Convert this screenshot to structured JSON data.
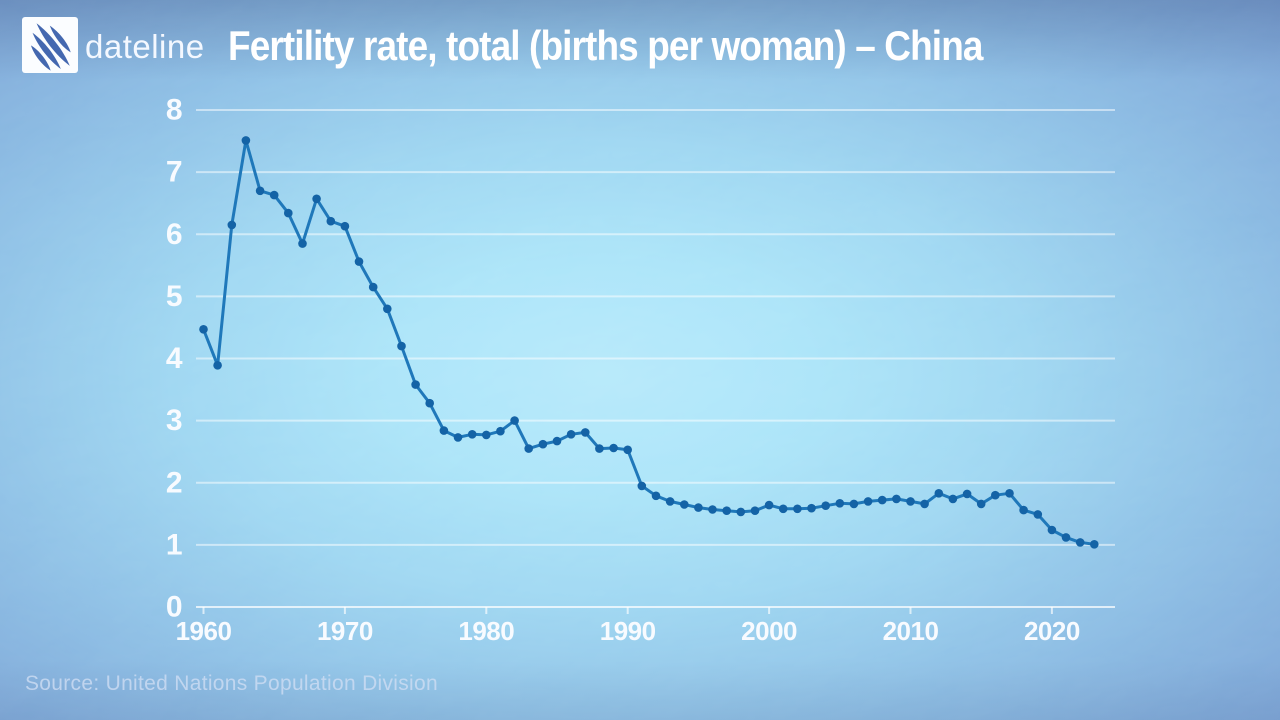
{
  "header": {
    "brand": "dateline"
  },
  "chart_data": {
    "type": "line",
    "title": "Fertility rate, total (births per woman) – China",
    "series_name": "China",
    "xlabel": "",
    "ylabel": "",
    "ylim": [
      0,
      8
    ],
    "yticks": [
      0,
      1,
      2,
      3,
      4,
      5,
      6,
      7,
      8
    ],
    "xticks": [
      1960,
      1970,
      1980,
      1990,
      2000,
      2010,
      2020
    ],
    "grid": true,
    "legend": "none",
    "markers": true,
    "x": [
      1960,
      1961,
      1962,
      1963,
      1964,
      1965,
      1966,
      1967,
      1968,
      1969,
      1970,
      1971,
      1972,
      1973,
      1974,
      1975,
      1976,
      1977,
      1978,
      1979,
      1980,
      1981,
      1982,
      1983,
      1984,
      1985,
      1986,
      1987,
      1988,
      1989,
      1990,
      1991,
      1992,
      1993,
      1994,
      1995,
      1996,
      1997,
      1998,
      1999,
      2000,
      2001,
      2002,
      2003,
      2004,
      2005,
      2006,
      2007,
      2008,
      2009,
      2010,
      2011,
      2012,
      2013,
      2014,
      2015,
      2016,
      2017,
      2018,
      2019,
      2020,
      2021,
      2022,
      2023
    ],
    "values": [
      4.47,
      3.89,
      6.15,
      7.51,
      6.7,
      6.63,
      6.34,
      5.85,
      6.57,
      6.21,
      6.13,
      5.56,
      5.15,
      4.8,
      4.2,
      3.58,
      3.28,
      2.84,
      2.73,
      2.78,
      2.77,
      2.83,
      3.0,
      2.55,
      2.62,
      2.67,
      2.78,
      2.81,
      2.55,
      2.56,
      2.53,
      1.95,
      1.79,
      1.7,
      1.65,
      1.6,
      1.57,
      1.55,
      1.53,
      1.55,
      1.64,
      1.58,
      1.58,
      1.59,
      1.63,
      1.67,
      1.66,
      1.7,
      1.72,
      1.74,
      1.7,
      1.66,
      1.83,
      1.74,
      1.82,
      1.66,
      1.8,
      1.83,
      1.56,
      1.49,
      1.24,
      1.12,
      1.04,
      1.01
    ]
  },
  "footer": {
    "source": "Source: United Nations Population Division"
  },
  "colors": {
    "line": "#1f78ba",
    "marker": "#1463a6",
    "grid": "rgba(255,255,255,0.50)",
    "baseline": "rgba(255,255,255,0.72)",
    "tick": "rgba(255,255,255,0.65)",
    "axis_label": "#f8fbff",
    "title": "#ffffff",
    "source": "rgba(208,222,244,0.78)",
    "logo_blade": "#4468b0",
    "logo_bg": "#fbfdff",
    "bg_center": "#9de0f8",
    "bg_edge": "#5d81c2"
  }
}
